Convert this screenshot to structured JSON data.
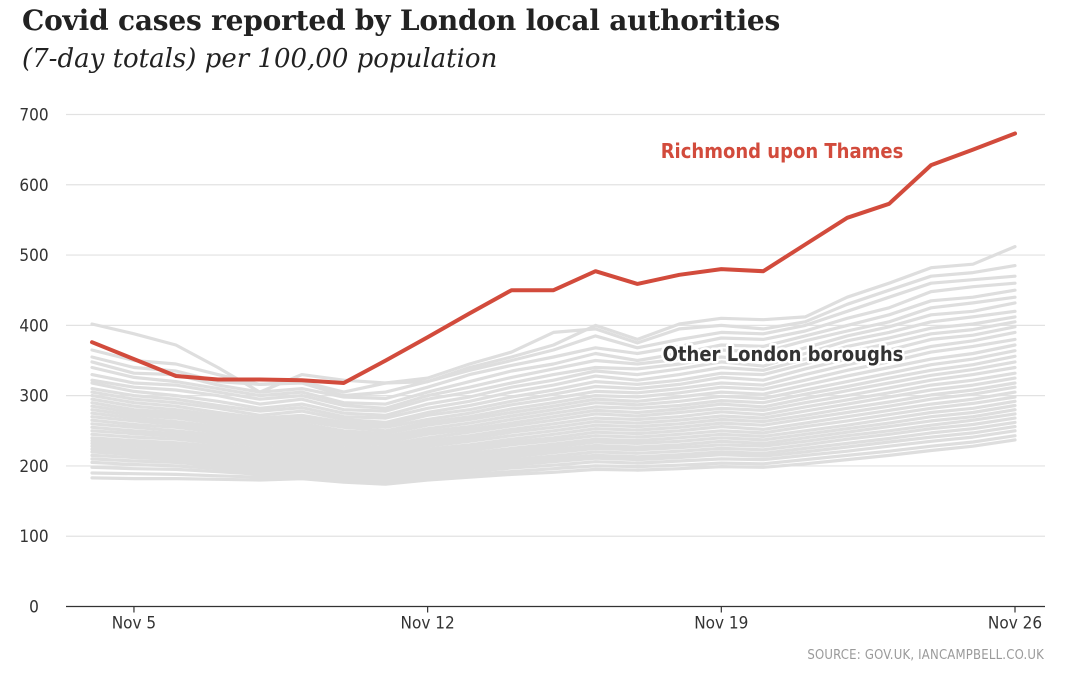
{
  "title": "Covid cases reported by London local authorities",
  "subtitle": "(7-day totals) per 100,00 population",
  "source": "SOURCE: GOV.UK, IANCAMPBELL.CO.UK",
  "colors": {
    "highlight": "#d24b3c",
    "others": "#dedede",
    "grid": "#e2e2e2",
    "axis": "#333333",
    "label_dark": "#333333"
  },
  "chart_data": {
    "type": "line",
    "title": "Covid cases reported by London local authorities",
    "subtitle": "(7-day totals) per 100,00 population",
    "xlabel": "",
    "ylabel": "",
    "ylim": [
      0,
      700
    ],
    "yticks": [
      0,
      100,
      200,
      300,
      400,
      500,
      600,
      700
    ],
    "grid": true,
    "x_day_range": [
      4,
      26
    ],
    "x_ticks": [
      {
        "day": 5,
        "label": "Nov 5"
      },
      {
        "day": 12,
        "label": "Nov 12"
      },
      {
        "day": 19,
        "label": "Nov 19"
      },
      {
        "day": 26,
        "label": "Nov 26"
      }
    ],
    "days": [
      4,
      5,
      6,
      7,
      8,
      9,
      10,
      11,
      12,
      13,
      14,
      15,
      16,
      17,
      18,
      19,
      20,
      21,
      22,
      23,
      24,
      25,
      26
    ],
    "highlight": {
      "name": "Richmond upon Thames",
      "label": "Richmond upon Thames",
      "values": [
        376,
        352,
        328,
        323,
        323,
        322,
        318,
        350,
        383,
        417,
        450,
        450,
        477,
        459,
        472,
        480,
        477,
        515,
        553,
        573,
        628,
        650,
        673
      ]
    },
    "others_label": "Other London boroughs",
    "others": [
      [
        402,
        388,
        372,
        340,
        305,
        330,
        322,
        318,
        320,
        340,
        355,
        372,
        400,
        380,
        402,
        410,
        408,
        412,
        440,
        460,
        482,
        487,
        512
      ],
      [
        365,
        350,
        345,
        330,
        316,
        320,
        305,
        318,
        325,
        345,
        362,
        390,
        395,
        375,
        395,
        400,
        395,
        405,
        430,
        450,
        470,
        475,
        485
      ],
      [
        355,
        340,
        335,
        320,
        316,
        318,
        300,
        305,
        320,
        336,
        350,
        365,
        385,
        368,
        380,
        390,
        388,
        400,
        420,
        440,
        460,
        465,
        470
      ],
      [
        348,
        332,
        330,
        315,
        305,
        310,
        298,
        296,
        312,
        330,
        343,
        355,
        368,
        360,
        370,
        382,
        380,
        392,
        410,
        425,
        448,
        455,
        460
      ],
      [
        340,
        326,
        320,
        310,
        300,
        305,
        290,
        288,
        305,
        320,
        335,
        345,
        360,
        350,
        360,
        372,
        370,
        385,
        400,
        415,
        435,
        440,
        450
      ],
      [
        330,
        318,
        315,
        305,
        295,
        300,
        286,
        282,
        300,
        312,
        326,
        338,
        350,
        345,
        352,
        365,
        362,
        378,
        392,
        405,
        425,
        432,
        440
      ],
      [
        322,
        312,
        308,
        300,
        288,
        295,
        280,
        278,
        295,
        305,
        318,
        330,
        340,
        338,
        345,
        355,
        350,
        368,
        385,
        398,
        415,
        420,
        432
      ],
      [
        318,
        306,
        300,
        292,
        282,
        288,
        275,
        272,
        288,
        298,
        312,
        322,
        335,
        330,
        338,
        348,
        342,
        360,
        378,
        390,
        405,
        412,
        420
      ],
      [
        310,
        300,
        295,
        286,
        278,
        283,
        270,
        268,
        282,
        292,
        305,
        315,
        328,
        322,
        330,
        340,
        336,
        352,
        370,
        382,
        396,
        402,
        412
      ],
      [
        305,
        295,
        290,
        282,
        272,
        278,
        266,
        262,
        276,
        286,
        298,
        308,
        320,
        316,
        322,
        332,
        330,
        345,
        362,
        374,
        388,
        394,
        405
      ],
      [
        300,
        290,
        285,
        276,
        268,
        272,
        262,
        258,
        272,
        280,
        292,
        302,
        313,
        310,
        316,
        326,
        322,
        338,
        352,
        365,
        380,
        386,
        398
      ],
      [
        295,
        285,
        280,
        272,
        264,
        268,
        258,
        255,
        266,
        275,
        287,
        296,
        306,
        304,
        310,
        318,
        315,
        330,
        344,
        356,
        370,
        378,
        390
      ],
      [
        290,
        280,
        276,
        268,
        260,
        264,
        255,
        250,
        262,
        270,
        281,
        290,
        300,
        298,
        304,
        312,
        309,
        322,
        336,
        348,
        362,
        370,
        380
      ],
      [
        285,
        276,
        272,
        264,
        256,
        260,
        250,
        246,
        258,
        266,
        276,
        285,
        295,
        292,
        298,
        305,
        302,
        315,
        328,
        340,
        352,
        360,
        372
      ],
      [
        280,
        272,
        268,
        260,
        252,
        256,
        246,
        242,
        253,
        261,
        271,
        280,
        290,
        287,
        292,
        299,
        296,
        308,
        320,
        332,
        344,
        352,
        364
      ],
      [
        275,
        268,
        263,
        256,
        248,
        252,
        242,
        238,
        249,
        256,
        266,
        275,
        284,
        282,
        286,
        293,
        290,
        302,
        313,
        325,
        336,
        344,
        356
      ],
      [
        270,
        264,
        259,
        252,
        244,
        248,
        238,
        234,
        245,
        252,
        261,
        270,
        279,
        276,
        281,
        288,
        284,
        296,
        307,
        318,
        329,
        337,
        348
      ],
      [
        265,
        259,
        255,
        248,
        240,
        244,
        234,
        230,
        240,
        248,
        257,
        265,
        274,
        271,
        276,
        282,
        279,
        290,
        300,
        311,
        322,
        330,
        340
      ],
      [
        260,
        255,
        250,
        244,
        236,
        240,
        230,
        226,
        236,
        243,
        252,
        260,
        268,
        266,
        270,
        277,
        273,
        284,
        294,
        304,
        315,
        322,
        332
      ],
      [
        255,
        250,
        246,
        240,
        232,
        236,
        226,
        222,
        232,
        239,
        248,
        255,
        263,
        261,
        265,
        271,
        268,
        278,
        288,
        298,
        308,
        315,
        325
      ],
      [
        250,
        246,
        242,
        236,
        228,
        232,
        222,
        218,
        228,
        235,
        243,
        250,
        258,
        256,
        260,
        266,
        263,
        272,
        282,
        291,
        301,
        308,
        318
      ],
      [
        245,
        241,
        238,
        232,
        224,
        228,
        218,
        214,
        224,
        230,
        238,
        245,
        253,
        251,
        255,
        261,
        258,
        267,
        276,
        285,
        295,
        302,
        312
      ],
      [
        240,
        236,
        233,
        228,
        220,
        224,
        214,
        210,
        220,
        226,
        234,
        240,
        248,
        246,
        250,
        256,
        252,
        261,
        270,
        279,
        288,
        295,
        305
      ],
      [
        236,
        232,
        229,
        224,
        216,
        220,
        210,
        206,
        216,
        222,
        230,
        236,
        243,
        241,
        245,
        250,
        247,
        256,
        264,
        273,
        282,
        289,
        298
      ],
      [
        232,
        228,
        225,
        220,
        212,
        216,
        206,
        202,
        212,
        218,
        225,
        231,
        238,
        236,
        240,
        245,
        242,
        250,
        258,
        267,
        276,
        282,
        292
      ],
      [
        228,
        224,
        221,
        216,
        208,
        212,
        202,
        198,
        208,
        214,
        221,
        227,
        234,
        232,
        235,
        240,
        237,
        245,
        253,
        261,
        270,
        276,
        286
      ],
      [
        224,
        220,
        217,
        212,
        204,
        208,
        198,
        195,
        204,
        210,
        217,
        223,
        229,
        227,
        230,
        235,
        232,
        240,
        248,
        256,
        264,
        270,
        280
      ],
      [
        220,
        216,
        213,
        208,
        200,
        204,
        195,
        192,
        200,
        206,
        213,
        219,
        225,
        223,
        226,
        230,
        228,
        235,
        243,
        250,
        258,
        265,
        274
      ],
      [
        215,
        212,
        209,
        204,
        197,
        200,
        192,
        189,
        197,
        202,
        209,
        214,
        220,
        218,
        221,
        225,
        223,
        230,
        238,
        245,
        253,
        259,
        268
      ],
      [
        210,
        207,
        205,
        200,
        194,
        197,
        189,
        186,
        194,
        199,
        205,
        210,
        215,
        213,
        216,
        220,
        218,
        225,
        232,
        239,
        247,
        253,
        262
      ],
      [
        205,
        202,
        200,
        196,
        191,
        194,
        186,
        183,
        191,
        196,
        201,
        206,
        211,
        209,
        212,
        216,
        214,
        220,
        227,
        234,
        241,
        247,
        256
      ],
      [
        198,
        196,
        195,
        192,
        188,
        190,
        183,
        180,
        188,
        192,
        197,
        201,
        206,
        204,
        207,
        210,
        209,
        215,
        221,
        228,
        235,
        241,
        250
      ],
      [
        190,
        189,
        188,
        186,
        184,
        186,
        180,
        177,
        184,
        188,
        192,
        196,
        200,
        199,
        201,
        204,
        203,
        209,
        215,
        221,
        228,
        234,
        243
      ],
      [
        183,
        182,
        182,
        181,
        180,
        182,
        177,
        174,
        180,
        184,
        188,
        191,
        195,
        194,
        196,
        199,
        198,
        203,
        209,
        215,
        222,
        228,
        237
      ]
    ]
  }
}
